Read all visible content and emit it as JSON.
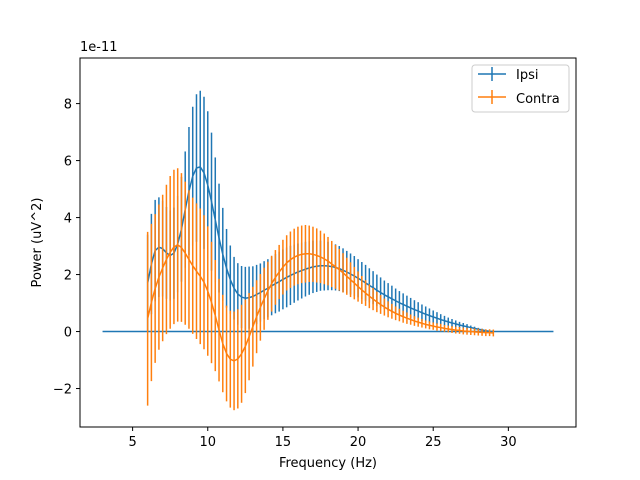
{
  "chart_data": {
    "type": "line",
    "title": "",
    "xlabel": "Frequency (Hz)",
    "ylabel": "Power (uV^2)",
    "y_offset_label": "1e-11",
    "xlim": [
      1.5,
      34.5
    ],
    "ylim": [
      -3.35,
      9.6
    ],
    "xticks": [
      5,
      10,
      15,
      20,
      25,
      30
    ],
    "yticks": [
      -2,
      0,
      2,
      4,
      6,
      8
    ],
    "legend_position": "top-right",
    "grid": false,
    "freq_start": 6.0,
    "freq_step": 0.25,
    "series": [
      {
        "name": "Ipsi",
        "color": "#1f77b4",
        "values": [
          1.7,
          2.37,
          2.84,
          2.96,
          2.91,
          2.76,
          2.67,
          2.75,
          3.07,
          3.59,
          4.28,
          4.93,
          5.45,
          5.74,
          5.78,
          5.57,
          5.14,
          4.56,
          3.92,
          3.28,
          2.71,
          2.22,
          1.82,
          1.52,
          1.32,
          1.21,
          1.17,
          1.19,
          1.23,
          1.3,
          1.37,
          1.45,
          1.52,
          1.6,
          1.68,
          1.75,
          1.83,
          1.9,
          1.97,
          2.03,
          2.09,
          2.14,
          2.19,
          2.23,
          2.27,
          2.29,
          2.31,
          2.31,
          2.3,
          2.28,
          2.25,
          2.21,
          2.15,
          2.09,
          2.02,
          1.95,
          1.87,
          1.79,
          1.71,
          1.62,
          1.54,
          1.45,
          1.37,
          1.29,
          1.22,
          1.15,
          1.08,
          1.01,
          0.95,
          0.89,
          0.83,
          0.77,
          0.72,
          0.66,
          0.61,
          0.56,
          0.51,
          0.47,
          0.42,
          0.38,
          0.34,
          0.3,
          0.27,
          0.23,
          0.2,
          0.17,
          0.14,
          0.11,
          0.08,
          0.06,
          0.03,
          0.01,
          0.0
        ],
        "errors": [
          1.7,
          1.76,
          1.78,
          1.75,
          1.68,
          1.61,
          1.58,
          1.6,
          1.69,
          1.84,
          2.04,
          2.25,
          2.44,
          2.59,
          2.67,
          2.67,
          2.59,
          2.42,
          2.19,
          1.91,
          1.63,
          1.38,
          1.2,
          1.1,
          1.08,
          1.09,
          1.1,
          1.09,
          1.06,
          1.04,
          1.02,
          1.02,
          1.02,
          1.03,
          1.04,
          1.05,
          1.05,
          1.05,
          1.04,
          1.02,
          1.0,
          0.98,
          0.96,
          0.94,
          0.92,
          0.9,
          0.88,
          0.87,
          0.85,
          0.83,
          0.81,
          0.79,
          0.77,
          0.74,
          0.72,
          0.7,
          0.67,
          0.65,
          0.63,
          0.6,
          0.58,
          0.55,
          0.53,
          0.5,
          0.48,
          0.46,
          0.43,
          0.41,
          0.39,
          0.37,
          0.35,
          0.33,
          0.31,
          0.29,
          0.27,
          0.25,
          0.23,
          0.21,
          0.19,
          0.17,
          0.15,
          0.14,
          0.12,
          0.11,
          0.1,
          0.09,
          0.07,
          0.06,
          0.05,
          0.04,
          0.03,
          0.02,
          0.02
        ]
      },
      {
        "name": "Contra",
        "color": "#ff7f0e",
        "values": [
          0.45,
          1.02,
          1.51,
          1.91,
          2.23,
          2.53,
          2.78,
          2.97,
          3.04,
          2.95,
          2.75,
          2.53,
          2.31,
          2.12,
          1.94,
          1.73,
          1.42,
          1.02,
          0.56,
          0.05,
          -0.42,
          -0.77,
          -0.97,
          -1.03,
          -0.96,
          -0.78,
          -0.52,
          -0.18,
          0.17,
          0.52,
          0.85,
          1.15,
          1.43,
          1.68,
          1.9,
          2.09,
          2.26,
          2.41,
          2.52,
          2.61,
          2.67,
          2.71,
          2.73,
          2.73,
          2.71,
          2.67,
          2.62,
          2.55,
          2.47,
          2.37,
          2.27,
          2.17,
          2.06,
          1.94,
          1.82,
          1.7,
          1.58,
          1.46,
          1.35,
          1.24,
          1.14,
          1.04,
          0.95,
          0.86,
          0.78,
          0.71,
          0.64,
          0.58,
          0.52,
          0.47,
          0.42,
          0.37,
          0.33,
          0.29,
          0.25,
          0.22,
          0.19,
          0.16,
          0.14,
          0.11,
          0.09,
          0.07,
          0.05,
          0.04,
          0.02,
          0.01,
          0.0,
          -0.01,
          -0.02,
          -0.03,
          -0.04,
          -0.04,
          -0.05
        ],
        "errors": [
          3.05,
          2.76,
          2.61,
          2.55,
          2.57,
          2.62,
          2.68,
          2.71,
          2.69,
          2.61,
          2.51,
          2.43,
          2.39,
          2.38,
          2.38,
          2.35,
          2.27,
          2.13,
          1.95,
          1.8,
          1.71,
          1.68,
          1.7,
          1.73,
          1.74,
          1.72,
          1.64,
          1.53,
          1.4,
          1.28,
          1.17,
          1.09,
          1.02,
          0.98,
          0.96,
          0.95,
          0.96,
          0.97,
          0.99,
          1.0,
          1.01,
          1.01,
          1.01,
          0.99,
          0.97,
          0.95,
          0.92,
          0.89,
          0.85,
          0.81,
          0.77,
          0.73,
          0.69,
          0.65,
          0.61,
          0.57,
          0.53,
          0.49,
          0.45,
          0.42,
          0.39,
          0.36,
          0.33,
          0.3,
          0.28,
          0.26,
          0.24,
          0.22,
          0.21,
          0.2,
          0.18,
          0.17,
          0.16,
          0.15,
          0.14,
          0.14,
          0.13,
          0.13,
          0.13,
          0.12,
          0.12,
          0.12,
          0.12,
          0.12,
          0.12,
          0.12,
          0.12,
          0.12,
          0.12,
          0.12,
          0.12,
          0.12,
          0.12
        ]
      }
    ],
    "zero_line": {
      "x_from": 3.0,
      "x_to": 33.0,
      "y": 0,
      "color": "#1f77b4"
    }
  }
}
